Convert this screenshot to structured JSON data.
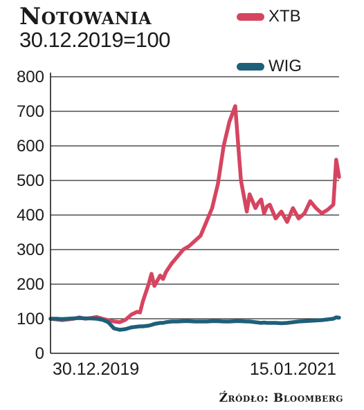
{
  "header": {
    "title": "Notowania",
    "subtitle": "30.12.2019=100"
  },
  "source": "Źródło: Bloomberg",
  "chart_data": {
    "type": "line",
    "title": "Notowania",
    "subtitle": "30.12.2019=100",
    "xlabel": "",
    "ylabel": "",
    "x_ticks": [
      "30.12.2019",
      "15.01.2021"
    ],
    "x_range": [
      "30.12.2019",
      "15.01.2021"
    ],
    "yticks": [
      0,
      100,
      200,
      300,
      400,
      500,
      600,
      700,
      800
    ],
    "ylim": [
      0,
      800
    ],
    "grid": true,
    "legend_position": "top-right",
    "x": [
      0,
      0.02,
      0.04,
      0.06,
      0.08,
      0.1,
      0.12,
      0.14,
      0.16,
      0.18,
      0.2,
      0.22,
      0.24,
      0.26,
      0.28,
      0.3,
      0.31,
      0.32,
      0.34,
      0.35,
      0.36,
      0.38,
      0.39,
      0.4,
      0.42,
      0.44,
      0.46,
      0.48,
      0.5,
      0.52,
      0.54,
      0.56,
      0.58,
      0.6,
      0.62,
      0.64,
      0.66,
      0.68,
      0.69,
      0.7,
      0.71,
      0.72,
      0.73,
      0.74,
      0.75,
      0.76,
      0.78,
      0.8,
      0.82,
      0.84,
      0.86,
      0.88,
      0.9,
      0.92,
      0.94,
      0.96,
      0.98,
      0.99,
      1.0
    ],
    "series": [
      {
        "name": "XTB",
        "color": "#d64560",
        "values": [
          100,
          98,
          96,
          98,
          100,
          104,
          100,
          102,
          105,
          100,
          96,
          92,
          90,
          97,
          112,
          120,
          118,
          150,
          200,
          230,
          195,
          225,
          215,
          235,
          260,
          280,
          300,
          310,
          325,
          340,
          380,
          420,
          490,
          600,
          670,
          715,
          500,
          410,
          460,
          440,
          420,
          435,
          445,
          405,
          425,
          430,
          390,
          410,
          380,
          420,
          390,
          405,
          440,
          420,
          405,
          415,
          430,
          560,
          510
        ]
      },
      {
        "name": "WIG",
        "color": "#1e5f7a",
        "values": [
          100,
          100,
          99,
          100,
          101,
          102,
          101,
          101,
          100,
          97,
          90,
          72,
          68,
          70,
          75,
          77,
          78,
          78,
          80,
          82,
          85,
          88,
          88,
          90,
          92,
          92,
          93,
          93,
          92,
          92,
          92,
          93,
          93,
          92,
          92,
          93,
          93,
          92,
          92,
          91,
          90,
          89,
          88,
          89,
          88,
          88,
          88,
          87,
          88,
          90,
          92,
          93,
          94,
          95,
          96,
          98,
          100,
          104,
          103
        ]
      }
    ]
  }
}
